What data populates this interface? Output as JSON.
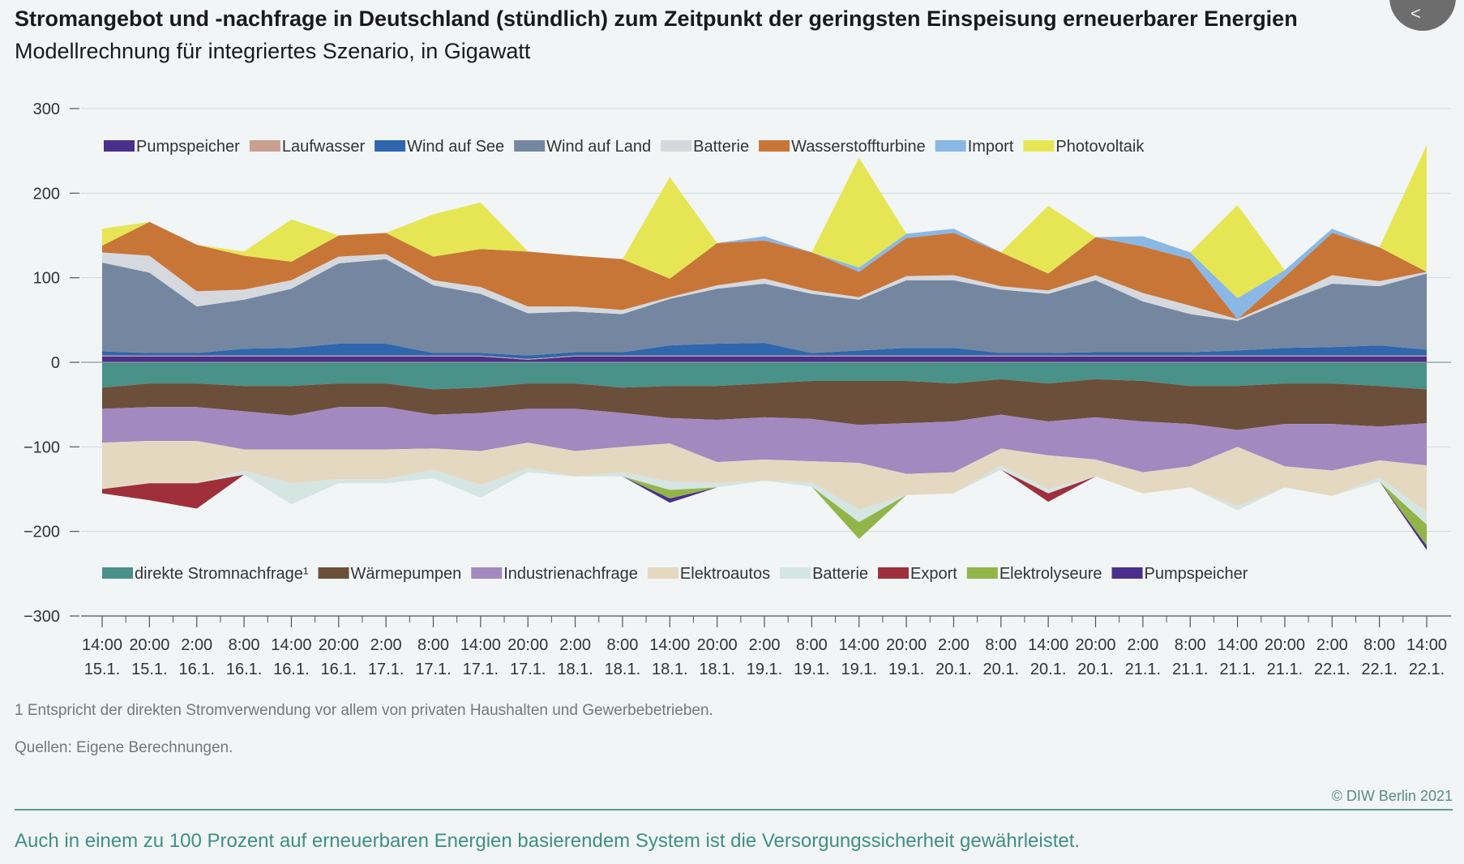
{
  "header": {
    "title": "Stromangebot und -nachfrage in Deutschland (stündlich) zum Zeitpunkt der geringsten Einspeisung erneuerbarer Energien",
    "subtitle": "Modellrechnung für integriertes Szenario, in Gigawatt"
  },
  "footer": {
    "footnote": "1  Entspricht der direkten Stromverwendung vor allem von privaten Haushalten und Gewerbebetrieben.",
    "sources": "Quellen: Eigene Berechnungen.",
    "copyright": "© DIW Berlin 2021",
    "caption": "Auch in einem zu 100 Prozent auf erneuerbaren Energien basierendem System ist die Versorgungssicherheit gewährleistet."
  },
  "chart_data": {
    "type": "area",
    "stacked": true,
    "ylim": [
      -300,
      300
    ],
    "yticks": [
      -300,
      -200,
      -100,
      0,
      100,
      200,
      300
    ],
    "ytick_labels": [
      "−300",
      "−200",
      "−100",
      "0",
      "100",
      "200",
      "300"
    ],
    "xticks": [
      {
        "time": "14:00",
        "date": "15.1."
      },
      {
        "time": "20:00",
        "date": "15.1."
      },
      {
        "time": "2:00",
        "date": "16.1."
      },
      {
        "time": "8:00",
        "date": "16.1."
      },
      {
        "time": "14:00",
        "date": "16.1."
      },
      {
        "time": "20:00",
        "date": "16.1."
      },
      {
        "time": "2:00",
        "date": "17.1."
      },
      {
        "time": "8:00",
        "date": "17.1."
      },
      {
        "time": "14:00",
        "date": "17.1."
      },
      {
        "time": "20:00",
        "date": "17.1."
      },
      {
        "time": "2:00",
        "date": "18.1."
      },
      {
        "time": "8:00",
        "date": "18.1."
      },
      {
        "time": "14:00",
        "date": "18.1."
      },
      {
        "time": "20:00",
        "date": "18.1."
      },
      {
        "time": "2:00",
        "date": "19.1."
      },
      {
        "time": "8:00",
        "date": "19.1."
      },
      {
        "time": "14:00",
        "date": "19.1."
      },
      {
        "time": "20:00",
        "date": "19.1."
      },
      {
        "time": "2:00",
        "date": "20.1."
      },
      {
        "time": "8:00",
        "date": "20.1."
      },
      {
        "time": "14:00",
        "date": "20.1."
      },
      {
        "time": "20:00",
        "date": "20.1."
      },
      {
        "time": "2:00",
        "date": "21.1."
      },
      {
        "time": "8:00",
        "date": "21.1."
      },
      {
        "time": "14:00",
        "date": "21.1."
      },
      {
        "time": "20:00",
        "date": "21.1."
      },
      {
        "time": "2:00",
        "date": "22.1."
      },
      {
        "time": "8:00",
        "date": "22.1."
      },
      {
        "time": "14:00",
        "date": "22.1."
      }
    ],
    "supply_series": [
      {
        "name": "Pumpspeicher",
        "color": "#4b2f8c",
        "values": [
          7,
          7,
          7,
          7,
          7,
          7,
          7,
          7,
          7,
          3,
          7,
          7,
          7,
          7,
          7,
          7,
          7,
          7,
          7,
          7,
          7,
          7,
          7,
          7,
          7,
          7,
          7,
          7,
          7
        ]
      },
      {
        "name": "Laufwasser",
        "color": "#c9a090",
        "values": [
          1,
          1,
          1,
          1,
          1,
          1,
          1,
          1,
          1,
          1,
          1,
          1,
          1,
          1,
          1,
          1,
          1,
          1,
          1,
          1,
          1,
          1,
          1,
          1,
          1,
          1,
          1,
          1,
          1
        ]
      },
      {
        "name": "Wind auf See",
        "color": "#2f66ad",
        "values": [
          5,
          3,
          3,
          8,
          9,
          14,
          14,
          3,
          3,
          4,
          4,
          4,
          12,
          14,
          15,
          3,
          6,
          9,
          9,
          3,
          3,
          4,
          4,
          4,
          6,
          9,
          10,
          12,
          7
        ]
      },
      {
        "name": "Wind auf Land",
        "color": "#7587a0",
        "values": [
          105,
          95,
          55,
          58,
          70,
          95,
          100,
          80,
          70,
          50,
          48,
          45,
          55,
          65,
          70,
          70,
          60,
          80,
          80,
          75,
          70,
          85,
          60,
          45,
          35,
          55,
          75,
          70,
          90
        ]
      },
      {
        "name": "Batterie",
        "color": "#d5d9de",
        "values": [
          12,
          20,
          18,
          12,
          10,
          8,
          6,
          6,
          8,
          8,
          6,
          5,
          2,
          4,
          6,
          4,
          3,
          5,
          6,
          4,
          4,
          6,
          10,
          10,
          2,
          4,
          10,
          6,
          2
        ]
      },
      {
        "name": "Wasserstoffturbine",
        "color": "#c87638",
        "values": [
          8,
          40,
          55,
          40,
          22,
          25,
          25,
          28,
          45,
          65,
          60,
          60,
          22,
          50,
          45,
          45,
          30,
          45,
          50,
          40,
          20,
          45,
          55,
          55,
          0,
          25,
          50,
          40,
          0
        ]
      },
      {
        "name": "Import",
        "color": "#8ab8e6",
        "values": [
          0,
          0,
          0,
          0,
          0,
          0,
          0,
          0,
          0,
          0,
          0,
          0,
          0,
          0,
          5,
          0,
          5,
          5,
          5,
          0,
          0,
          0,
          12,
          8,
          25,
          8,
          5,
          0,
          0
        ]
      },
      {
        "name": "Photovoltaik",
        "color": "#e6e655",
        "values": [
          20,
          0,
          0,
          5,
          50,
          0,
          0,
          50,
          55,
          0,
          0,
          0,
          120,
          0,
          0,
          0,
          130,
          0,
          0,
          0,
          80,
          0,
          0,
          0,
          110,
          0,
          0,
          0,
          150
        ]
      }
    ],
    "demand_series": [
      {
        "name": "direkte Stromnachfrage¹",
        "color": "#4a918a",
        "values": [
          -30,
          -25,
          -25,
          -28,
          -28,
          -25,
          -25,
          -32,
          -30,
          -25,
          -25,
          -30,
          -28,
          -28,
          -25,
          -22,
          -22,
          -22,
          -25,
          -20,
          -25,
          -20,
          -22,
          -28,
          -28,
          -25,
          -25,
          -28,
          -32
        ]
      },
      {
        "name": "Wärmepumpen",
        "color": "#6b4f3b",
        "values": [
          -25,
          -28,
          -28,
          -30,
          -35,
          -28,
          -28,
          -30,
          -30,
          -30,
          -30,
          -30,
          -38,
          -40,
          -40,
          -45,
          -52,
          -50,
          -45,
          -42,
          -45,
          -45,
          -48,
          -45,
          -52,
          -48,
          -48,
          -48,
          -40
        ]
      },
      {
        "name": "Industrienachfrage",
        "color": "#a289c0",
        "values": [
          -40,
          -40,
          -40,
          -45,
          -40,
          -50,
          -50,
          -40,
          -45,
          -40,
          -50,
          -40,
          -30,
          -50,
          -50,
          -50,
          -45,
          -60,
          -60,
          -40,
          -40,
          -50,
          -60,
          -50,
          -20,
          -50,
          -55,
          -40,
          -50
        ]
      },
      {
        "name": "Elektroautos",
        "color": "#e4d8c0",
        "values": [
          -55,
          -50,
          -50,
          -25,
          -40,
          -35,
          -35,
          -25,
          -40,
          -30,
          -30,
          -30,
          -45,
          -25,
          -25,
          -25,
          -55,
          -25,
          -25,
          -20,
          -40,
          -20,
          -25,
          -25,
          -70,
          -25,
          -30,
          -20,
          -55
        ]
      },
      {
        "name": "Batterie",
        "color": "#d4e5e2",
        "values": [
          0,
          0,
          0,
          -5,
          -25,
          -5,
          -5,
          -10,
          -15,
          -5,
          0,
          -5,
          -10,
          -5,
          0,
          -5,
          -15,
          0,
          0,
          -5,
          -5,
          0,
          0,
          0,
          -5,
          0,
          0,
          -5,
          -15
        ]
      },
      {
        "name": "Export",
        "color": "#9e2f3b",
        "values": [
          -5,
          -20,
          -30,
          0,
          0,
          0,
          0,
          0,
          0,
          0,
          0,
          0,
          0,
          0,
          0,
          0,
          0,
          0,
          0,
          0,
          -10,
          0,
          0,
          0,
          0,
          0,
          0,
          0,
          0
        ]
      },
      {
        "name": "Elektrolyseure",
        "color": "#92b54a",
        "values": [
          0,
          0,
          0,
          0,
          0,
          0,
          0,
          0,
          0,
          0,
          0,
          0,
          -10,
          0,
          0,
          0,
          -20,
          0,
          0,
          0,
          0,
          0,
          0,
          0,
          0,
          0,
          0,
          0,
          -25
        ]
      },
      {
        "name": "Pumpspeicher",
        "color": "#4b2f8c",
        "values": [
          0,
          0,
          0,
          0,
          0,
          0,
          0,
          0,
          0,
          0,
          0,
          0,
          -5,
          0,
          0,
          0,
          0,
          0,
          0,
          0,
          0,
          0,
          0,
          0,
          0,
          0,
          0,
          0,
          -5
        ]
      }
    ],
    "legend_top": "top-left, inside plot",
    "legend_bottom": "bottom-left, inside plot",
    "grid": true
  }
}
